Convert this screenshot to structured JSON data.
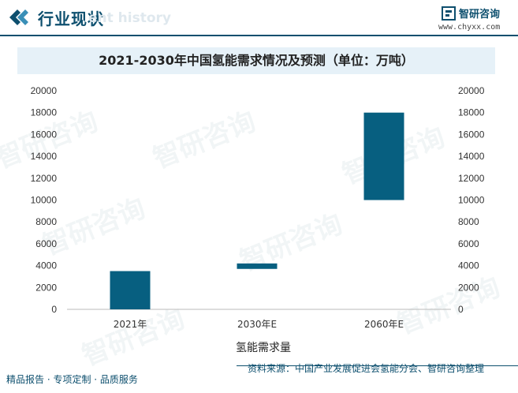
{
  "header": {
    "title": "行业现状",
    "ghost_text": "ent history",
    "brand_name": "智研咨询",
    "brand_url": "www.chyxx.com"
  },
  "watermark": "智研咨询",
  "footer": {
    "left": "精品报告 · 专项定制 · 品质服务",
    "right": "资料来源：中国产业发展促进会氢能分会、智研咨询整理"
  },
  "colors": {
    "bar": "#075f80",
    "accent": "#0d4f6e",
    "title_band": "#e6f1f8"
  },
  "chart_data": {
    "type": "bar",
    "title": "2021-2030年中国氢能需求情况及预测（单位：万吨）",
    "xlabel": "氢能需求量",
    "categories": [
      "2021年",
      "2030年E",
      "2060年E"
    ],
    "series": [
      {
        "ranges": [
          [
            0,
            3500
          ],
          [
            3700,
            4200
          ],
          [
            10000,
            18000
          ]
        ]
      }
    ],
    "ylim": [
      0,
      20000
    ],
    "yticks": [
      0,
      2000,
      4000,
      6000,
      8000,
      10000,
      12000,
      14000,
      16000,
      18000,
      20000
    ],
    "secondary_yaxis": true,
    "grid": false
  }
}
